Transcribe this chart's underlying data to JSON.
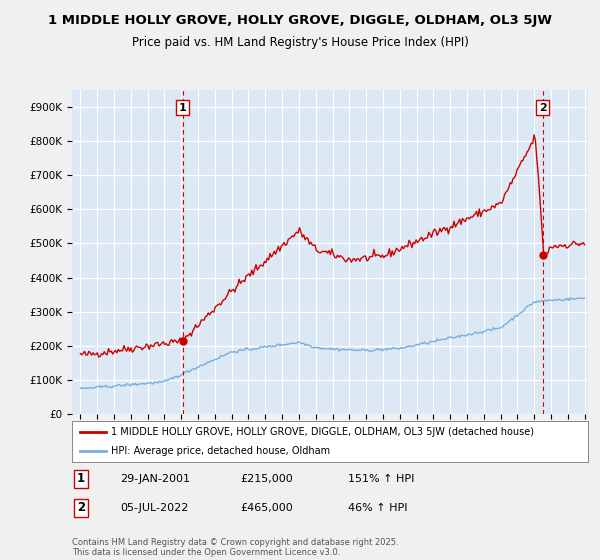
{
  "title": "1 MIDDLE HOLLY GROVE, HOLLY GROVE, DIGGLE, OLDHAM, OL3 5JW",
  "subtitle": "Price paid vs. HM Land Registry's House Price Index (HPI)",
  "bg_color": "#f0f0f0",
  "plot_bg_color": "#dce9f5",
  "grid_color": "#ffffff",
  "red_color": "#cc0000",
  "blue_color": "#7aaedc",
  "sale1_date": "29-JAN-2001",
  "sale1_price": 215000,
  "sale1_label": "151% ↑ HPI",
  "sale2_date": "05-JUL-2022",
  "sale2_price": 465000,
  "sale2_label": "46% ↑ HPI",
  "legend_label1": "1 MIDDLE HOLLY GROVE, HOLLY GROVE, DIGGLE, OLDHAM, OL3 5JW (detached house)",
  "legend_label2": "HPI: Average price, detached house, Oldham",
  "footer": "Contains HM Land Registry data © Crown copyright and database right 2025.\nThis data is licensed under the Open Government Licence v3.0.",
  "ylim": [
    0,
    950000
  ],
  "yticks": [
    0,
    100000,
    200000,
    300000,
    400000,
    500000,
    600000,
    700000,
    800000,
    900000
  ],
  "ytick_labels": [
    "£0",
    "£100K",
    "£200K",
    "£300K",
    "£400K",
    "£500K",
    "£600K",
    "£700K",
    "£800K",
    "£900K"
  ],
  "year_start": 1995,
  "year_end": 2025
}
